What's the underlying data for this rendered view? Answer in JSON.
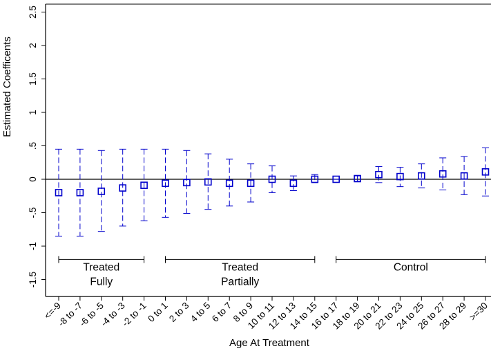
{
  "chart_data": {
    "type": "scatter",
    "xlabel": "Age At Treatment",
    "ylabel": "Estimated Coefficents",
    "ylim": [
      -1.75,
      2.5
    ],
    "yticks": [
      -1.5,
      -1,
      -0.5,
      0,
      0.5,
      1,
      1.5,
      2,
      2.5
    ],
    "ytick_labels": [
      "-1.5",
      "-1",
      "-.5",
      "0",
      ".5",
      "1",
      "1.5",
      "2",
      "2.5"
    ],
    "categories": [
      "<=-9",
      "-8 to -7",
      "-6 to -5",
      "-4 to -3",
      "-2 to -1",
      "0 to 1",
      "2 to 3",
      "4 to 5",
      "6 to 7",
      "8 to 9",
      "10 to 11",
      "12 to 13",
      "14 to 15",
      "16 to 17",
      "18 to 19",
      "20 to 21",
      "22 to 23",
      "24 to 25",
      "26 to 27",
      "28 to 29",
      ">=30"
    ],
    "estimates": [
      -0.2,
      -0.2,
      -0.18,
      -0.13,
      -0.09,
      -0.06,
      -0.05,
      -0.04,
      -0.06,
      -0.06,
      0.0,
      -0.06,
      0.0,
      0.0,
      0.01,
      0.07,
      0.04,
      0.05,
      0.08,
      0.05,
      0.11
    ],
    "ci_upper": [
      0.45,
      0.45,
      0.43,
      0.45,
      0.45,
      0.45,
      0.43,
      0.38,
      0.3,
      0.23,
      0.2,
      0.05,
      0.07,
      0.0,
      0.05,
      0.19,
      0.18,
      0.23,
      0.32,
      0.34,
      0.47
    ],
    "ci_lower": [
      -0.85,
      -0.85,
      -0.78,
      -0.7,
      -0.62,
      -0.57,
      -0.51,
      -0.45,
      -0.4,
      -0.34,
      -0.2,
      -0.17,
      -0.05,
      0.0,
      -0.03,
      -0.05,
      -0.11,
      -0.13,
      -0.16,
      -0.23,
      -0.25
    ],
    "reference_line": 0,
    "groups": [
      {
        "label_lines": [
          "Treated",
          "Fully"
        ],
        "from": 0,
        "to": 4
      },
      {
        "label_lines": [
          "Treated",
          "Partially"
        ],
        "from": 5,
        "to": 12
      },
      {
        "label_lines": [
          "Control"
        ],
        "from": 13,
        "to": 20
      }
    ],
    "group_bracket_y": -1.2,
    "marker_color": "#0000cc",
    "line_color": "#000000"
  }
}
